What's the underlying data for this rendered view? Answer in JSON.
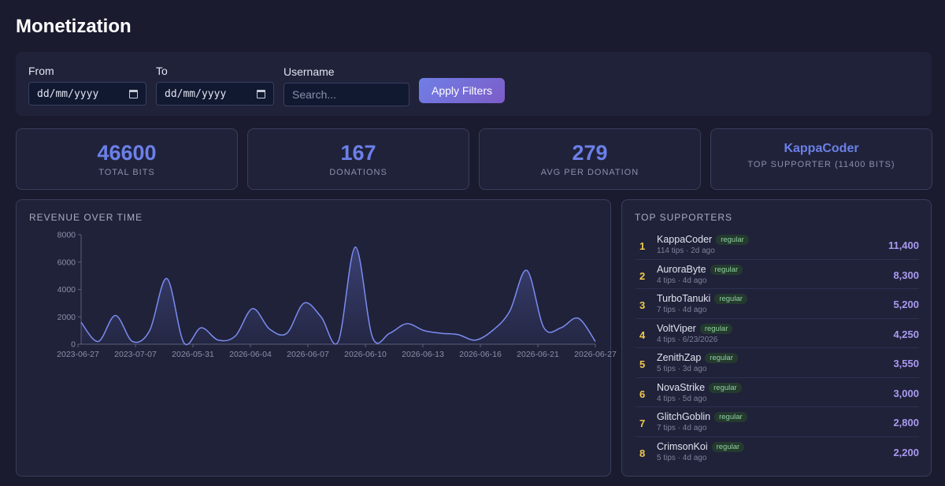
{
  "page": {
    "title": "Monetization"
  },
  "filters": {
    "from_label": "From",
    "from_value": "dd/mm/yyyy",
    "to_label": "To",
    "to_value": "dd/mm/yyyy",
    "username_label": "Username",
    "username_placeholder": "Search...",
    "apply_label": "Apply Filters"
  },
  "stats": [
    {
      "value": "46600",
      "label": "TOTAL BITS"
    },
    {
      "value": "167",
      "label": "DONATIONS"
    },
    {
      "value": "279",
      "label": "AVG PER DONATION"
    },
    {
      "value": "KappaCoder",
      "label": "TOP SUPPORTER (11400 BITS)"
    }
  ],
  "revenue": {
    "title": "REVENUE OVER TIME",
    "chart_data": {
      "type": "line",
      "ylim": [
        0,
        8000
      ],
      "yticks": [
        "8000",
        "6000",
        "4000",
        "2000",
        "0"
      ],
      "xticks": [
        "2023-06-27",
        "2023-07-07",
        "2026-05-31",
        "2026-06-04",
        "2026-06-07",
        "2026-06-10",
        "2026-06-13",
        "2026-06-16",
        "2026-06-21",
        "2026-06-27"
      ],
      "values": [
        1600,
        200,
        2100,
        200,
        1000,
        4800,
        100,
        1200,
        300,
        600,
        2600,
        1100,
        800,
        3000,
        2000,
        200,
        7100,
        500,
        800,
        1500,
        1000,
        800,
        700,
        300,
        1000,
        2400,
        5400,
        1200,
        1200,
        1900,
        200
      ],
      "grid": false
    }
  },
  "supporters": {
    "title": "TOP SUPPORTERS",
    "items": [
      {
        "rank": "1",
        "name": "KappaCoder",
        "badge": "regular",
        "meta": "114 tips · 2d ago",
        "amount": "11,400"
      },
      {
        "rank": "2",
        "name": "AuroraByte",
        "badge": "regular",
        "meta": "4 tips · 4d ago",
        "amount": "8,300"
      },
      {
        "rank": "3",
        "name": "TurboTanuki",
        "badge": "regular",
        "meta": "7 tips · 4d ago",
        "amount": "5,200"
      },
      {
        "rank": "4",
        "name": "VoltViper",
        "badge": "regular",
        "meta": "4 tips · 6/23/2026",
        "amount": "4,250"
      },
      {
        "rank": "5",
        "name": "ZenithZap",
        "badge": "regular",
        "meta": "5 tips · 3d ago",
        "amount": "3,550"
      },
      {
        "rank": "6",
        "name": "NovaStrike",
        "badge": "regular",
        "meta": "4 tips · 5d ago",
        "amount": "3,000"
      },
      {
        "rank": "7",
        "name": "GlitchGoblin",
        "badge": "regular",
        "meta": "7 tips · 4d ago",
        "amount": "2,800"
      },
      {
        "rank": "8",
        "name": "CrimsonKoi",
        "badge": "regular",
        "meta": "5 tips · 4d ago",
        "amount": "2,200"
      }
    ]
  },
  "colors": {
    "accent": "#6b80e8",
    "line": "#7b8cf0",
    "rank": "#f2c94c",
    "amount": "#a99af0"
  }
}
